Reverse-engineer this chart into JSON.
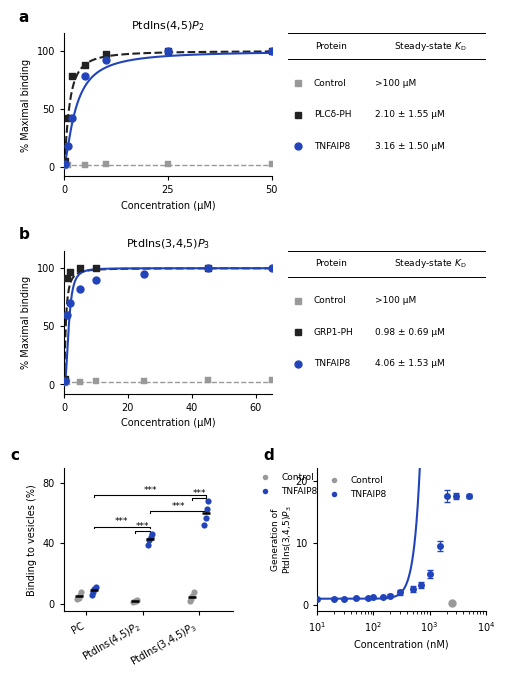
{
  "panel_a": {
    "title": "PtdIns(4,5)$\\mathit{P}_2$",
    "xlabel": "Concentration (μM)",
    "ylabel": "% Maximal binding",
    "xlim": [
      0,
      50
    ],
    "ylim": [
      -8,
      115
    ],
    "xticks": [
      0,
      25,
      50
    ],
    "yticks": [
      0,
      50,
      100
    ],
    "control_x": [
      0.2,
      1,
      5,
      10,
      25,
      50
    ],
    "control_y": [
      1,
      2,
      2,
      3,
      3,
      3
    ],
    "plc_x": [
      0.2,
      1,
      2,
      5,
      10,
      25,
      50
    ],
    "plc_y": [
      5,
      42,
      78,
      88,
      97,
      100,
      100
    ],
    "tnfaip8_x": [
      0.2,
      1,
      2,
      5,
      10,
      25,
      50
    ],
    "tnfaip8_y": [
      3,
      18,
      42,
      78,
      92,
      100,
      100
    ],
    "plc_kd": 1.2,
    "plc_n": 1.4,
    "tnfaip8_kd": 2.8,
    "tnfaip8_n": 1.4,
    "table_proteins": [
      "Control",
      "PLCδ-PH",
      "TNFAIP8"
    ],
    "table_kd": [
      ">100 μM",
      "2.10 ± 1.55 μM",
      "3.16 ± 1.50 μM"
    ]
  },
  "panel_b": {
    "title": "PtdIns(3,4,5)$\\mathit{P}_3$",
    "xlabel": "Concentration (μM)",
    "ylabel": "% Maximal binding",
    "xlim": [
      0,
      65
    ],
    "ylim": [
      -8,
      115
    ],
    "xticks": [
      0,
      20,
      40,
      60
    ],
    "yticks": [
      0,
      50,
      100
    ],
    "control_x": [
      0.2,
      1,
      5,
      10,
      25,
      45,
      65
    ],
    "control_y": [
      1,
      2,
      2,
      3,
      3,
      4,
      4
    ],
    "grp1_x": [
      0.2,
      0.5,
      1,
      2,
      5,
      10,
      45
    ],
    "grp1_y": [
      5,
      60,
      92,
      97,
      100,
      100,
      100
    ],
    "tnfaip8_x": [
      0.2,
      1,
      2,
      5,
      10,
      25,
      45,
      65
    ],
    "tnfaip8_y": [
      3,
      60,
      70,
      82,
      90,
      95,
      100,
      100
    ],
    "grp1_kd": 0.55,
    "grp1_n": 1.5,
    "tnfaip8_kd": 1.5,
    "tnfaip8_n": 2.5,
    "table_proteins": [
      "Control",
      "GRP1-PH",
      "TNFAIP8"
    ],
    "table_kd": [
      ">100 μM",
      "0.98 ± 0.69 μM",
      "4.06 ± 1.53 μM"
    ]
  },
  "panel_c": {
    "ylabel": "Binding to vesicles (%)",
    "ylim": [
      -5,
      90
    ],
    "yticks": [
      0,
      40,
      80
    ],
    "categories": [
      "PC",
      "PtdIns(4,5)$\\mathit{P}_2$",
      "PtdIns(3,4,5)$\\mathit{P}_3$"
    ],
    "control_PC": [
      3,
      4,
      6,
      8
    ],
    "tnfaip8_PC": [
      6,
      8,
      10,
      11
    ],
    "control_PI45P2": [
      1,
      1.5,
      2,
      2.5
    ],
    "tnfaip8_PI45P2": [
      39,
      42,
      44,
      46
    ],
    "control_PI345P3": [
      2,
      3,
      5,
      8
    ],
    "tnfaip8_PI345P3": [
      52,
      57,
      63,
      68
    ]
  },
  "panel_d": {
    "xlabel": "Concentration (nM)",
    "ylabel": "Generation of\nPtdIns(3,4,5)$\\mathit{P}_3$",
    "xlim_log": [
      1,
      4
    ],
    "ylim": [
      -1,
      22
    ],
    "yticks": [
      0,
      10,
      20
    ],
    "control_x": [
      2500
    ],
    "control_y": [
      0.3
    ],
    "tnfaip8_x": [
      10,
      20,
      30,
      50,
      80,
      100,
      150,
      200,
      300,
      500,
      700,
      1000,
      1500,
      2000,
      3000,
      5000
    ],
    "tnfaip8_y": [
      1.0,
      1.0,
      1.0,
      1.1,
      1.1,
      1.2,
      1.3,
      1.5,
      2.0,
      2.5,
      3.2,
      5.0,
      9.5,
      17.5,
      17.5,
      17.5
    ],
    "tnfaip8_err": [
      0.1,
      0.1,
      0.1,
      0.1,
      0.1,
      0.15,
      0.2,
      0.3,
      0.4,
      0.5,
      0.5,
      0.6,
      0.8,
      1.0,
      0.5,
      0.3
    ]
  },
  "colors": {
    "control": "#999999",
    "plc": "#222222",
    "tnfaip8_blue": "#2244bb"
  }
}
